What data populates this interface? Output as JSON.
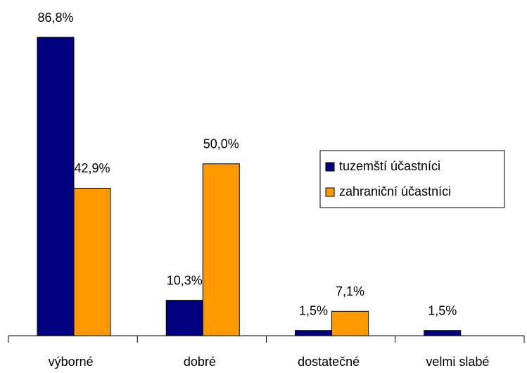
{
  "chart_data": {
    "type": "bar",
    "categories": [
      "výborné",
      "dobré",
      "dostatečné",
      "velmi slabé"
    ],
    "series": [
      {
        "name": "tuzemští účastníci",
        "color": "#000080",
        "values": [
          86.8,
          10.3,
          1.5,
          1.5
        ],
        "value_labels": [
          "86,8%",
          "10,3%",
          "1,5%",
          "1,5%"
        ]
      },
      {
        "name": "zahraniční účastníci",
        "color": "#ff9900",
        "values": [
          42.9,
          50.0,
          7.1,
          null
        ],
        "value_labels": [
          "42,9%",
          "50,0%",
          "7,1%",
          null
        ]
      }
    ],
    "legend": "right"
  }
}
